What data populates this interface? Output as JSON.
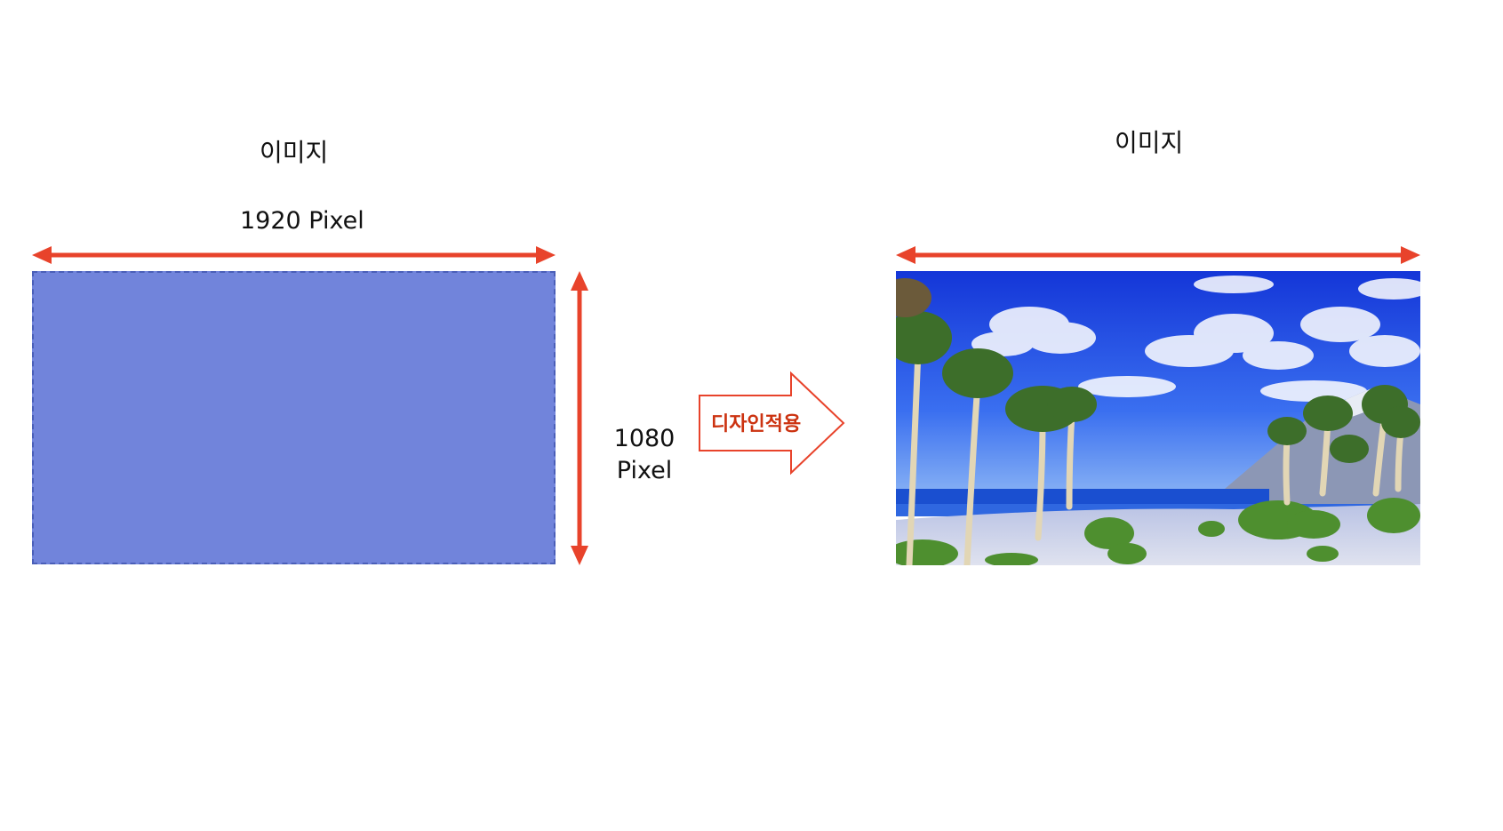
{
  "left_panel": {
    "title": "이미지",
    "width_label": "1920 Pixel",
    "height_label_line1": "1080",
    "height_label_line2": "Pixel",
    "placeholder_color": "#7184db"
  },
  "transition": {
    "label": "디자인적용",
    "label_color": "#cc3311"
  },
  "right_panel": {
    "title": "이미지",
    "image_subject": "tropical-beach-palm-trees"
  },
  "colors": {
    "dimension_arrow": "#e8432b"
  }
}
